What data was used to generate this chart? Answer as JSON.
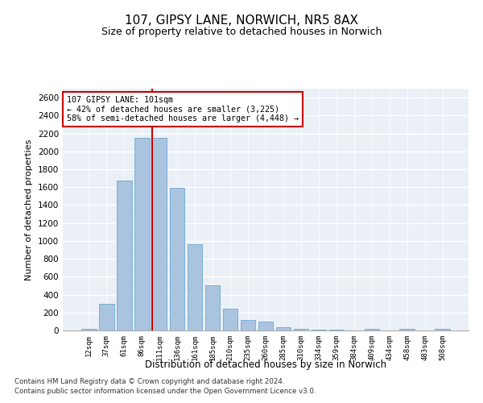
{
  "title": "107, GIPSY LANE, NORWICH, NR5 8AX",
  "subtitle": "Size of property relative to detached houses in Norwich",
  "xlabel": "Distribution of detached houses by size in Norwich",
  "ylabel": "Number of detached properties",
  "categories": [
    "12sqm",
    "37sqm",
    "61sqm",
    "86sqm",
    "111sqm",
    "136sqm",
    "161sqm",
    "185sqm",
    "210sqm",
    "235sqm",
    "260sqm",
    "285sqm",
    "310sqm",
    "334sqm",
    "359sqm",
    "384sqm",
    "409sqm",
    "434sqm",
    "458sqm",
    "483sqm",
    "508sqm"
  ],
  "values": [
    20,
    295,
    1670,
    2150,
    2150,
    1590,
    960,
    505,
    245,
    120,
    100,
    40,
    20,
    10,
    5,
    3,
    15,
    3,
    15,
    3,
    20
  ],
  "bar_color": "#aac4e0",
  "bar_edgecolor": "#7aafd4",
  "marker_index": 4,
  "marker_color": "#cc0000",
  "annotation_line1": "107 GIPSY LANE: 101sqm",
  "annotation_line2": "← 42% of detached houses are smaller (3,225)",
  "annotation_line3": "58% of semi-detached houses are larger (4,448) →",
  "ylim": [
    0,
    2700
  ],
  "yticks": [
    0,
    200,
    400,
    600,
    800,
    1000,
    1200,
    1400,
    1600,
    1800,
    2000,
    2200,
    2400,
    2600
  ],
  "background_color": "#eaf0f6",
  "grid_color": "#ffffff",
  "footnote1": "Contains HM Land Registry data © Crown copyright and database right 2024.",
  "footnote2": "Contains public sector information licensed under the Open Government Licence v3.0."
}
